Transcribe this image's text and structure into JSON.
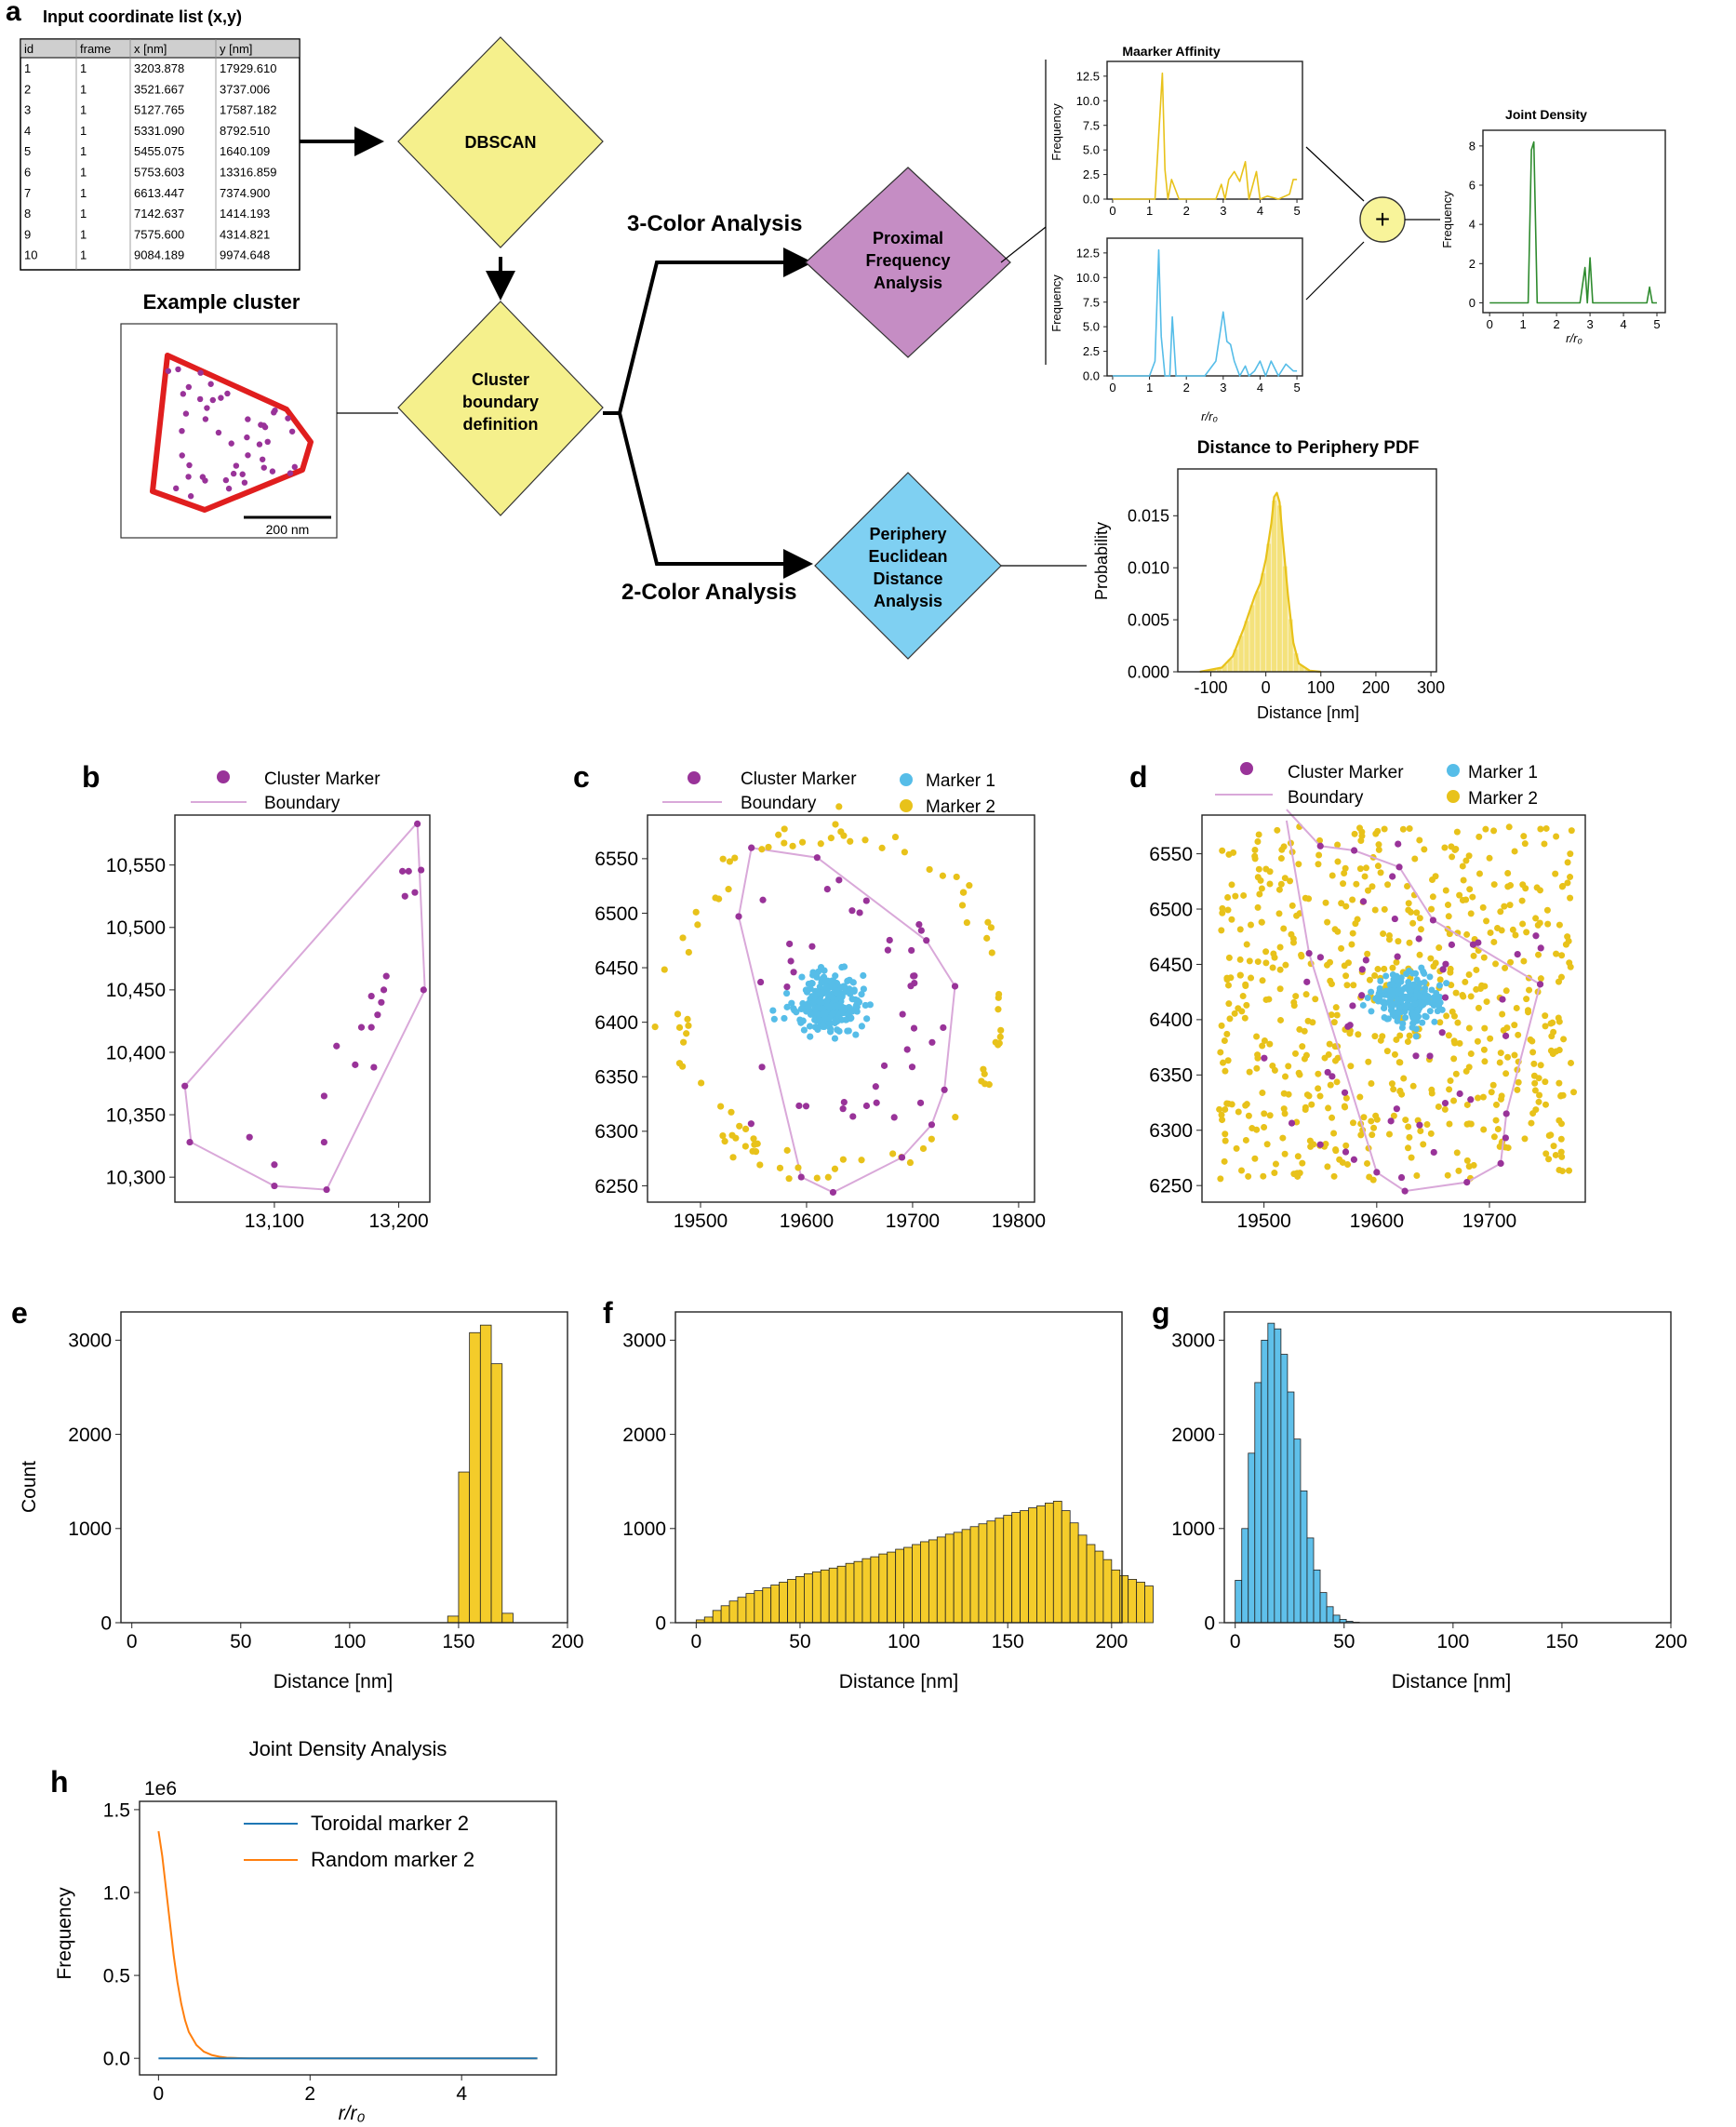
{
  "colors": {
    "yellow": "#e8c21a",
    "yellow_fill": "#f4dc4c",
    "cyan": "#56bde8",
    "purple": "#993399",
    "boundary": "#d9a8d9",
    "red": "#e01e1e",
    "diamond_yellow": "#f5f08c",
    "diamond_purple": "#c58dc4",
    "diamond_cyan": "#7fd0f2",
    "green": "#2e8b2e",
    "blue_line": "#1f77b4",
    "orange_line": "#ff7f0e",
    "joint_circle": "#f8f49a"
  },
  "panel_a": {
    "panel_label": "a",
    "table_title": "Input coordinate list (x,y)",
    "table_headers": [
      "id",
      "frame",
      "x [nm]",
      "y [nm]"
    ],
    "table_rows": [
      [
        "1",
        "1",
        "3203.878",
        "17929.610"
      ],
      [
        "2",
        "1",
        "3521.667",
        "3737.006"
      ],
      [
        "3",
        "1",
        "5127.765",
        "17587.182"
      ],
      [
        "4",
        "1",
        "5331.090",
        "8792.510"
      ],
      [
        "5",
        "1",
        "5455.075",
        "1640.109"
      ],
      [
        "6",
        "1",
        "5753.603",
        "13316.859"
      ],
      [
        "7",
        "1",
        "6613.447",
        "7374.900"
      ],
      [
        "8",
        "1",
        "7142.637",
        "1414.193"
      ],
      [
        "9",
        "1",
        "7575.600",
        "4314.821"
      ],
      [
        "10",
        "1",
        "9084.189",
        "9974.648"
      ]
    ],
    "dbscan": "DBSCAN",
    "boundary_def": [
      "Cluster",
      "boundary",
      "definition"
    ],
    "example_cluster": "Example cluster",
    "scale_bar": "200 nm",
    "three_color": "3-Color Analysis",
    "two_color": "2-Color Analysis",
    "proximal": [
      "Proximal",
      "Frequency",
      "Analysis"
    ],
    "periphery": [
      "Periphery",
      "Euclidean",
      "Distance",
      "Analysis"
    ],
    "affinity_title": "Maarker Affinity",
    "frequency_label": "Frequency",
    "rr0_label": "r/r₀",
    "affinity_yticks": [
      "0.0",
      "2.5",
      "5.0",
      "7.5",
      "10.0",
      "12.5"
    ],
    "r_ticks": [
      "0",
      "1",
      "2",
      "3",
      "4",
      "5"
    ],
    "plus": "+",
    "joint_title": "Joint Density",
    "joint_yticks": [
      "0",
      "2",
      "4",
      "6",
      "8"
    ],
    "pdf_title": "Distance to Periphery PDF",
    "pdf_ylabel": "Probability",
    "pdf_xlabel": "Distance [nm]",
    "pdf_yticks": [
      "0.000",
      "0.005",
      "0.010",
      "0.015"
    ],
    "pdf_xticks": [
      "-100",
      "0",
      "100",
      "200",
      "300"
    ]
  },
  "panel_b": {
    "panel_label": "b",
    "legend": [
      "Cluster Marker",
      "Boundary"
    ],
    "yticks": [
      "10,300",
      "10,350",
      "10,400",
      "10,450",
      "10,500",
      "10,550"
    ],
    "xticks": [
      "13,100",
      "13,200"
    ]
  },
  "panel_c": {
    "panel_label": "c",
    "legend": [
      "Cluster Marker",
      "Boundary",
      "Marker 1",
      "Marker 2"
    ],
    "yticks": [
      "6250",
      "6300",
      "6350",
      "6400",
      "6450",
      "6500",
      "6550"
    ],
    "xticks": [
      "19500",
      "19600",
      "19700",
      "19800"
    ]
  },
  "panel_d": {
    "panel_label": "d",
    "legend": [
      "Cluster Marker",
      "Boundary",
      "Marker 1",
      "Marker 2"
    ],
    "yticks": [
      "6250",
      "6300",
      "6350",
      "6400",
      "6450",
      "6500",
      "6550"
    ],
    "xticks": [
      "19500",
      "19600",
      "19700"
    ]
  },
  "panel_e": {
    "panel_label": "e",
    "ylabel": "Count",
    "xlabel": "Distance [nm]"
  },
  "panel_f": {
    "panel_label": "f",
    "xlabel": "Distance [nm]"
  },
  "panel_g": {
    "panel_label": "g",
    "xlabel": "Distance [nm]"
  },
  "hist_yticks": [
    "0",
    "1000",
    "2000",
    "3000"
  ],
  "hist_xticks": [
    "0",
    "50",
    "100",
    "150",
    "200"
  ],
  "panel_h": {
    "panel_label": "h",
    "title": "Joint Density Analysis",
    "offset": "1e6",
    "ylabel": "Frequency",
    "xlabel": "r/r₀",
    "yticks": [
      "0.0",
      "0.5",
      "1.0",
      "1.5"
    ],
    "xticks": [
      "0",
      "2",
      "4"
    ],
    "legend": [
      "Toroidal marker 2",
      "Random marker 2"
    ]
  },
  "chart_data": [
    {
      "id": "a_marker_affinity_top",
      "type": "line",
      "title": "Maarker Affinity",
      "xlabel": "r/r₀",
      "ylabel": "Frequency",
      "xlim": [
        0,
        5
      ],
      "ylim": [
        0,
        14
      ],
      "x": [
        0,
        0.9,
        1.15,
        1.25,
        1.35,
        1.42,
        1.5,
        1.6,
        1.8,
        2.5,
        2.8,
        2.95,
        3.05,
        3.15,
        3.3,
        3.45,
        3.6,
        3.7,
        3.9,
        4.0,
        4.2,
        4.5,
        4.8,
        4.9,
        5.0
      ],
      "y": [
        0,
        0,
        0,
        6.5,
        12.8,
        3,
        0,
        2,
        0,
        0,
        0,
        1.5,
        0,
        2,
        2.8,
        1.8,
        3.8,
        0,
        2.8,
        0,
        0.3,
        0,
        0.5,
        2,
        2
      ]
    },
    {
      "id": "a_marker_affinity_bottom",
      "type": "line",
      "xlabel": "r/r₀",
      "ylabel": "Frequency",
      "xlim": [
        0,
        5
      ],
      "ylim": [
        0,
        14
      ],
      "x": [
        0,
        1.0,
        1.15,
        1.25,
        1.32,
        1.42,
        1.55,
        1.62,
        1.72,
        2.5,
        2.8,
        3.0,
        3.1,
        3.2,
        3.3,
        3.45,
        3.6,
        3.7,
        3.85,
        4.0,
        4.15,
        4.3,
        4.5,
        4.7,
        4.9,
        5.0
      ],
      "y": [
        0,
        0,
        1.5,
        12.8,
        4,
        0,
        0,
        6,
        0,
        0,
        1.5,
        6.5,
        3.5,
        3.2,
        1.5,
        0,
        1,
        0,
        0.5,
        1.5,
        0,
        1.5,
        0,
        1.2,
        0.5,
        0.5
      ]
    },
    {
      "id": "a_joint_density",
      "type": "line",
      "title": "Joint Density",
      "xlabel": "r/r₀",
      "ylabel": "Frequency",
      "xlim": [
        0,
        5
      ],
      "ylim": [
        0,
        8.6
      ],
      "x": [
        0,
        1.0,
        1.15,
        1.25,
        1.32,
        1.42,
        2.7,
        2.85,
        2.92,
        3.0,
        3.08,
        3.15,
        4.7,
        4.78,
        4.86,
        5.0
      ],
      "y": [
        0,
        0,
        0,
        7.8,
        8.2,
        0,
        0,
        1.8,
        0,
        2.3,
        0,
        0,
        0,
        0.8,
        0,
        0
      ]
    },
    {
      "id": "a_periphery_pdf",
      "type": "area",
      "title": "Distance to Periphery PDF",
      "xlabel": "Distance [nm]",
      "ylabel": "Probability",
      "xlim": [
        -160,
        310
      ],
      "ylim": [
        0,
        0.0195
      ],
      "x": [
        -120,
        -80,
        -60,
        -40,
        -20,
        -10,
        0,
        10,
        15,
        20,
        25,
        30,
        40,
        50,
        60,
        80,
        100
      ],
      "y": [
        0,
        0.0004,
        0.0015,
        0.0042,
        0.0073,
        0.0085,
        0.0108,
        0.0143,
        0.0168,
        0.0172,
        0.0163,
        0.0132,
        0.0075,
        0.0028,
        0.0008,
        0.0001,
        0
      ]
    },
    {
      "id": "e_hist",
      "type": "bar",
      "xlabel": "Distance [nm]",
      "ylabel": "Count",
      "xlim": [
        -5,
        200
      ],
      "ylim": [
        0,
        3300
      ],
      "bin_start": 145,
      "bin_width": 5,
      "values": [
        70,
        1600,
        3080,
        3160,
        2750,
        100
      ]
    },
    {
      "id": "f_hist",
      "type": "bar",
      "xlabel": "Distance [nm]",
      "xlim": [
        -10,
        205
      ],
      "ylim": [
        0,
        3300
      ],
      "bin_start": 0,
      "bin_width": 4,
      "values": [
        30,
        60,
        130,
        180,
        230,
        270,
        310,
        340,
        370,
        400,
        430,
        460,
        490,
        520,
        540,
        560,
        580,
        600,
        630,
        650,
        680,
        700,
        730,
        750,
        780,
        800,
        830,
        860,
        880,
        910,
        940,
        960,
        990,
        1020,
        1050,
        1080,
        1110,
        1140,
        1170,
        1190,
        1220,
        1240,
        1270,
        1290,
        1190,
        1060,
        930,
        830,
        760,
        670,
        560,
        500,
        460,
        430,
        390
      ]
    },
    {
      "id": "g_hist",
      "type": "bar",
      "xlabel": "Distance [nm]",
      "xlim": [
        -5,
        200
      ],
      "ylim": [
        0,
        3300
      ],
      "bin_start": 0,
      "bin_width": 3,
      "values": [
        450,
        1000,
        1800,
        2550,
        3000,
        3180,
        3120,
        2850,
        2450,
        1950,
        1400,
        900,
        560,
        320,
        170,
        80,
        35,
        15,
        5
      ]
    },
    {
      "id": "h_joint_density_analysis",
      "type": "line",
      "title": "Joint Density Analysis",
      "xlabel": "r/r₀",
      "ylabel": "Frequency",
      "xlim": [
        -0.25,
        5.25
      ],
      "ylim": [
        -0.1,
        1.55
      ],
      "series": [
        {
          "name": "Toroidal marker 2",
          "x": [
            0,
            5
          ],
          "y": [
            0,
            0
          ]
        },
        {
          "name": "Random marker 2",
          "x": [
            0,
            0.05,
            0.1,
            0.15,
            0.2,
            0.25,
            0.3,
            0.35,
            0.4,
            0.5,
            0.6,
            0.7,
            0.8,
            0.9,
            1.0,
            1.2,
            5.0
          ],
          "y": [
            1.37,
            1.22,
            1.02,
            0.82,
            0.62,
            0.46,
            0.33,
            0.23,
            0.16,
            0.08,
            0.04,
            0.02,
            0.01,
            0.004,
            0.002,
            0,
            0
          ]
        }
      ]
    },
    {
      "id": "b_scatter",
      "type": "scatter",
      "xlim": [
        13020,
        13225
      ],
      "ylim": [
        10280,
        10590
      ],
      "cluster_marker": [
        [
          13215,
          10583
        ],
        [
          13208,
          10545
        ],
        [
          13203,
          10545
        ],
        [
          13218,
          10546
        ],
        [
          13213,
          10528
        ],
        [
          13205,
          10525
        ],
        [
          13220,
          10450
        ],
        [
          13190,
          10461
        ],
        [
          13188,
          10450
        ],
        [
          13186,
          10440
        ],
        [
          13183,
          10430
        ],
        [
          13178,
          10445
        ],
        [
          13178,
          10420
        ],
        [
          13170,
          10420
        ],
        [
          13150,
          10405
        ],
        [
          13180,
          10388
        ],
        [
          13165,
          10390
        ],
        [
          13140,
          10365
        ],
        [
          13140,
          10328
        ],
        [
          13080,
          10332
        ],
        [
          13100,
          10310
        ],
        [
          13142,
          10290
        ],
        [
          13100,
          10293
        ],
        [
          13032,
          10328
        ],
        [
          13028,
          10373
        ]
      ],
      "boundary": [
        [
          13028,
          10373
        ],
        [
          13215,
          10584
        ],
        [
          13221,
          10450
        ],
        [
          13142,
          10290
        ],
        [
          13100,
          10293
        ],
        [
          13033,
          10328
        ],
        [
          13028,
          10373
        ]
      ]
    },
    {
      "id": "c_scatter",
      "type": "scatter",
      "xlim": [
        19450,
        19815
      ],
      "ylim": [
        6235,
        6590
      ],
      "boundary": [
        [
          19548,
          6560
        ],
        [
          19610,
          6551
        ],
        [
          19713,
          6475
        ],
        [
          19740,
          6433
        ],
        [
          19730,
          6338
        ],
        [
          19718,
          6306
        ],
        [
          19690,
          6276
        ],
        [
          19625,
          6244
        ],
        [
          19595,
          6258
        ],
        [
          19536,
          6497
        ],
        [
          19548,
          6560
        ]
      ],
      "cluster_center": [
        19620,
        6418
      ],
      "cluster_radius": 30,
      "marker1_count": 260,
      "ring_center": [
        19630,
        6420
      ],
      "ring_radius": 155,
      "marker2_count": 95,
      "cluster_marker_count": 40
    },
    {
      "id": "d_scatter",
      "type": "scatter",
      "xlim": [
        19445,
        19785
      ],
      "ylim": [
        6235,
        6585
      ],
      "boundary": [
        [
          19520,
          6590
        ],
        [
          19550,
          6557
        ],
        [
          19580,
          6553
        ],
        [
          19620,
          6538
        ],
        [
          19650,
          6490
        ],
        [
          19745,
          6432
        ],
        [
          19715,
          6315
        ],
        [
          19710,
          6270
        ],
        [
          19680,
          6253
        ],
        [
          19625,
          6245
        ],
        [
          19600,
          6262
        ],
        [
          19540,
          6460
        ],
        [
          19520,
          6580
        ]
      ],
      "cluster_center": [
        19625,
        6418
      ],
      "cluster_radius": 24,
      "marker1_count": 220,
      "marker2_count": 620,
      "cluster_marker_count": 45
    }
  ]
}
